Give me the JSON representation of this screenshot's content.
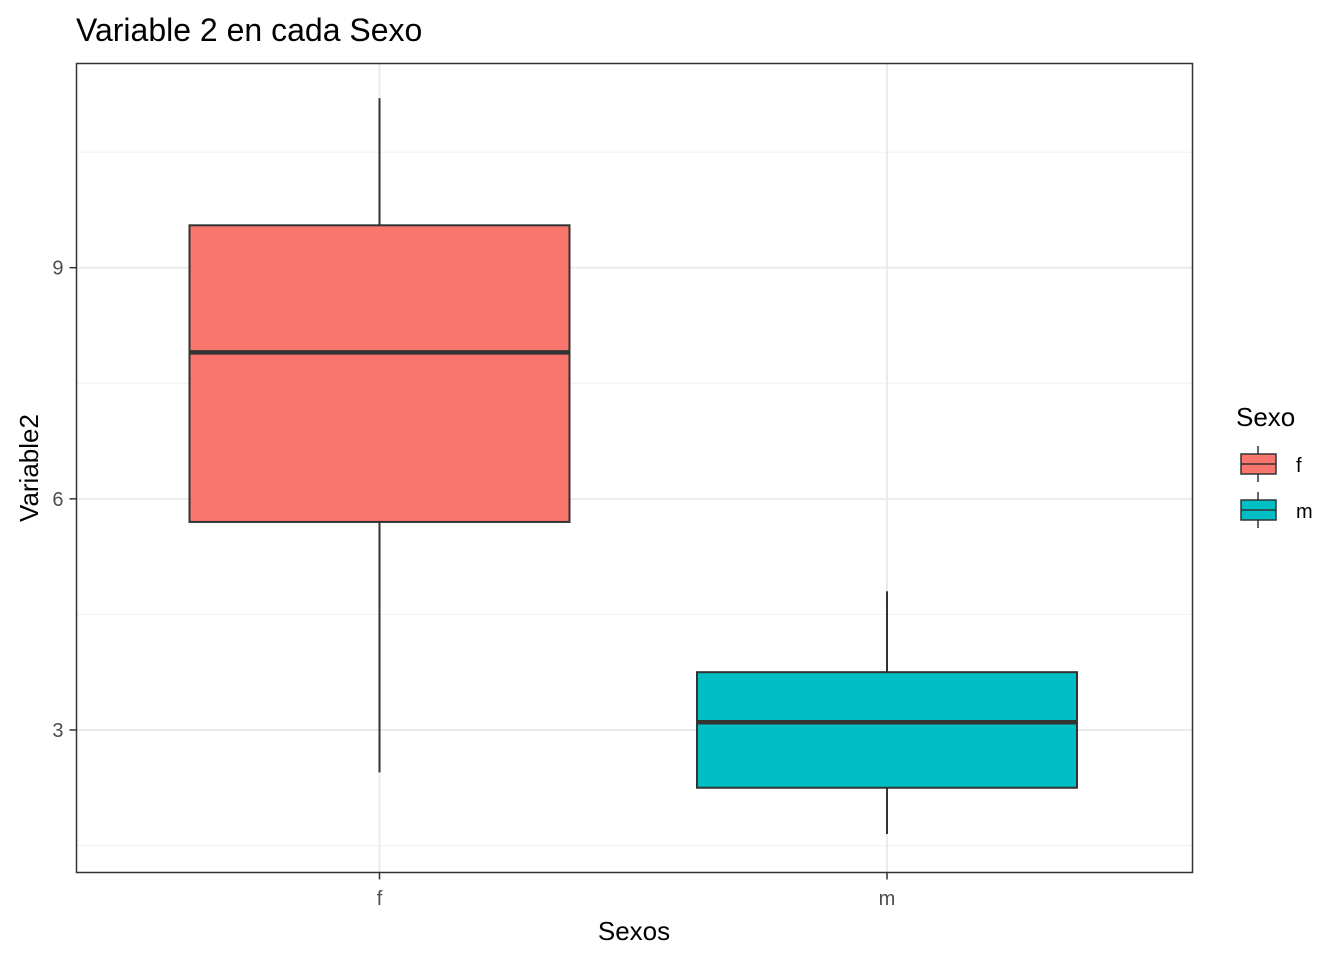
{
  "chart_data": {
    "type": "boxplot",
    "title": "Variable 2 en cada Sexo",
    "xlabel": "Sexos",
    "ylabel": "Variable2",
    "categories": [
      "f",
      "m"
    ],
    "ylim": [
      1.15,
      11.65
    ],
    "y_ticks": [
      3,
      6,
      9
    ],
    "y_tick_labels": [
      "3",
      "6",
      "9"
    ],
    "grid": true,
    "legend": {
      "title": "Sexo",
      "placement": "right",
      "items": [
        {
          "label": "f",
          "color": "#F8766D"
        },
        {
          "label": "m",
          "color": "#00BFC4"
        }
      ]
    },
    "boxes": [
      {
        "category": "f",
        "min": 2.45,
        "q1": 5.7,
        "median": 7.9,
        "q3": 9.55,
        "max": 11.2,
        "color": "#F8766D"
      },
      {
        "category": "m",
        "min": 1.65,
        "q1": 2.25,
        "median": 3.1,
        "q3": 3.75,
        "max": 4.8,
        "color": "#00BFC4"
      }
    ]
  }
}
